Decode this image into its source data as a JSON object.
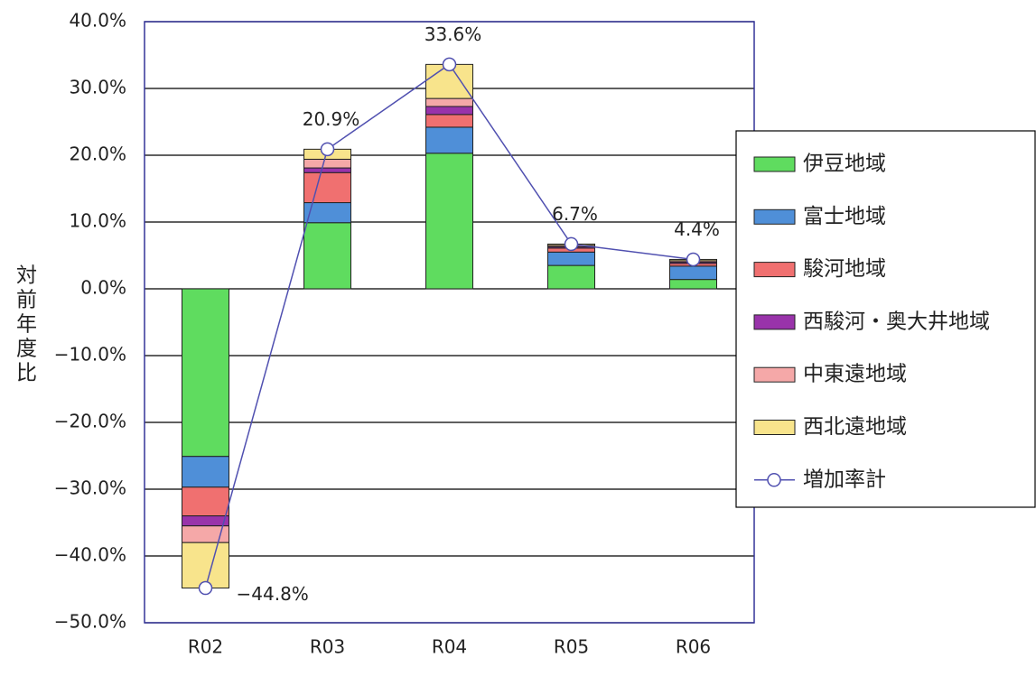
{
  "chart_data": {
    "type": "stacked-bar-line",
    "y_label": "対前年度比",
    "categories": [
      "R02",
      "R03",
      "R04",
      "R05",
      "R06"
    ],
    "series": [
      {
        "name": "伊豆地域",
        "color": "#5fdc5f",
        "values": [
          -25.1,
          9.9,
          20.3,
          3.5,
          1.4
        ]
      },
      {
        "name": "富士地域",
        "color": "#4f8fd8",
        "values": [
          -4.6,
          3.0,
          3.9,
          2.0,
          2.0
        ]
      },
      {
        "name": "駿河地域",
        "color": "#f07070",
        "values": [
          -4.3,
          4.5,
          1.9,
          0.6,
          0.4
        ]
      },
      {
        "name": "西駿河・奥大井地域",
        "color": "#9933aa",
        "values": [
          -1.5,
          0.7,
          1.2,
          0.2,
          0.2
        ]
      },
      {
        "name": "中東遠地域",
        "color": "#f5a8a8",
        "values": [
          -2.5,
          1.3,
          1.2,
          0.2,
          0.2
        ]
      },
      {
        "name": "西北遠地域",
        "color": "#f8e48c",
        "values": [
          -6.8,
          1.5,
          5.1,
          0.2,
          0.2
        ]
      },
      {
        "name": "増加率計",
        "type": "line",
        "color": "#5050b0",
        "values": [
          -44.8,
          20.9,
          33.6,
          6.7,
          4.4
        ],
        "value_labels": [
          "−44.8%",
          "20.9%",
          "33.6%",
          "6.7%",
          "4.4%"
        ]
      }
    ],
    "ylim": [
      -50,
      40
    ],
    "yticks": [
      {
        "value": -50,
        "label": "−50.0%"
      },
      {
        "value": -40,
        "label": "−40.0%"
      },
      {
        "value": -30,
        "label": "−30.0%"
      },
      {
        "value": -20,
        "label": "−20.0%"
      },
      {
        "value": -10,
        "label": "−10.0%"
      },
      {
        "value": 0,
        "label": "0.0%"
      },
      {
        "value": 10,
        "label": "10.0%"
      },
      {
        "value": 20,
        "label": "20.0%"
      },
      {
        "value": 30,
        "label": "30.0%"
      },
      {
        "value": 40,
        "label": "40.0%"
      }
    ],
    "grid": true,
    "legend": "right"
  }
}
